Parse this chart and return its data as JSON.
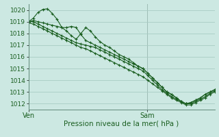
{
  "xlabel": "Pression niveau de la mer( hPa )",
  "bg_color": "#cce8e2",
  "grid_color": "#a8ccc4",
  "line_color": "#1a5e20",
  "ylim": [
    1011.5,
    1020.5
  ],
  "xlim": [
    0,
    47
  ],
  "yticks": [
    1012,
    1013,
    1014,
    1015,
    1016,
    1017,
    1018,
    1019,
    1020
  ],
  "xtick_labels": [
    "Ven",
    "Sam"
  ],
  "xtick_positions": [
    0,
    30
  ],
  "vline_x": 30,
  "lines": [
    [
      1019.0,
      1019.3,
      1019.8,
      1020.05,
      1020.1,
      1019.7,
      1019.2,
      1018.5,
      1018.2,
      1017.8,
      1017.5,
      1018.0,
      1018.5,
      1018.2,
      1017.7,
      1017.3,
      1017.0,
      1016.8,
      1016.5,
      1016.2,
      1016.0,
      1015.8,
      1015.5,
      1015.2,
      1015.0,
      1014.6,
      1014.2,
      1013.8,
      1013.4,
      1013.0,
      1012.8,
      1012.5,
      1012.2,
      1012.0,
      1012.1,
      1012.3,
      1012.5,
      1012.8,
      1013.0,
      1013.2
    ],
    [
      1019.0,
      1019.1,
      1019.0,
      1018.9,
      1018.8,
      1018.7,
      1018.6,
      1018.5,
      1018.5,
      1018.6,
      1018.5,
      1017.9,
      1017.4,
      1017.2,
      1017.0,
      1016.8,
      1016.6,
      1016.4,
      1016.2,
      1016.0,
      1015.8,
      1015.6,
      1015.4,
      1015.2,
      1015.0,
      1014.6,
      1014.2,
      1013.8,
      1013.4,
      1013.0,
      1012.8,
      1012.5,
      1012.2,
      1012.0,
      1012.1,
      1012.3,
      1012.5,
      1012.8,
      1013.0,
      1013.2
    ],
    [
      1019.0,
      1019.0,
      1018.8,
      1018.6,
      1018.4,
      1018.2,
      1018.0,
      1017.8,
      1017.6,
      1017.4,
      1017.2,
      1017.1,
      1017.0,
      1016.9,
      1016.8,
      1016.6,
      1016.4,
      1016.2,
      1016.0,
      1015.8,
      1015.6,
      1015.4,
      1015.2,
      1015.0,
      1014.8,
      1014.4,
      1014.0,
      1013.6,
      1013.2,
      1012.9,
      1012.6,
      1012.4,
      1012.2,
      1012.0,
      1012.0,
      1012.2,
      1012.4,
      1012.6,
      1012.9,
      1013.1
    ],
    [
      1018.9,
      1018.8,
      1018.6,
      1018.4,
      1018.2,
      1018.0,
      1017.8,
      1017.6,
      1017.4,
      1017.2,
      1017.0,
      1016.8,
      1016.7,
      1016.5,
      1016.3,
      1016.1,
      1015.9,
      1015.7,
      1015.5,
      1015.3,
      1015.1,
      1014.9,
      1014.7,
      1014.5,
      1014.3,
      1014.0,
      1013.7,
      1013.4,
      1013.1,
      1012.8,
      1012.5,
      1012.3,
      1012.1,
      1011.9,
      1011.9,
      1012.1,
      1012.3,
      1012.5,
      1012.8,
      1013.0
    ]
  ]
}
